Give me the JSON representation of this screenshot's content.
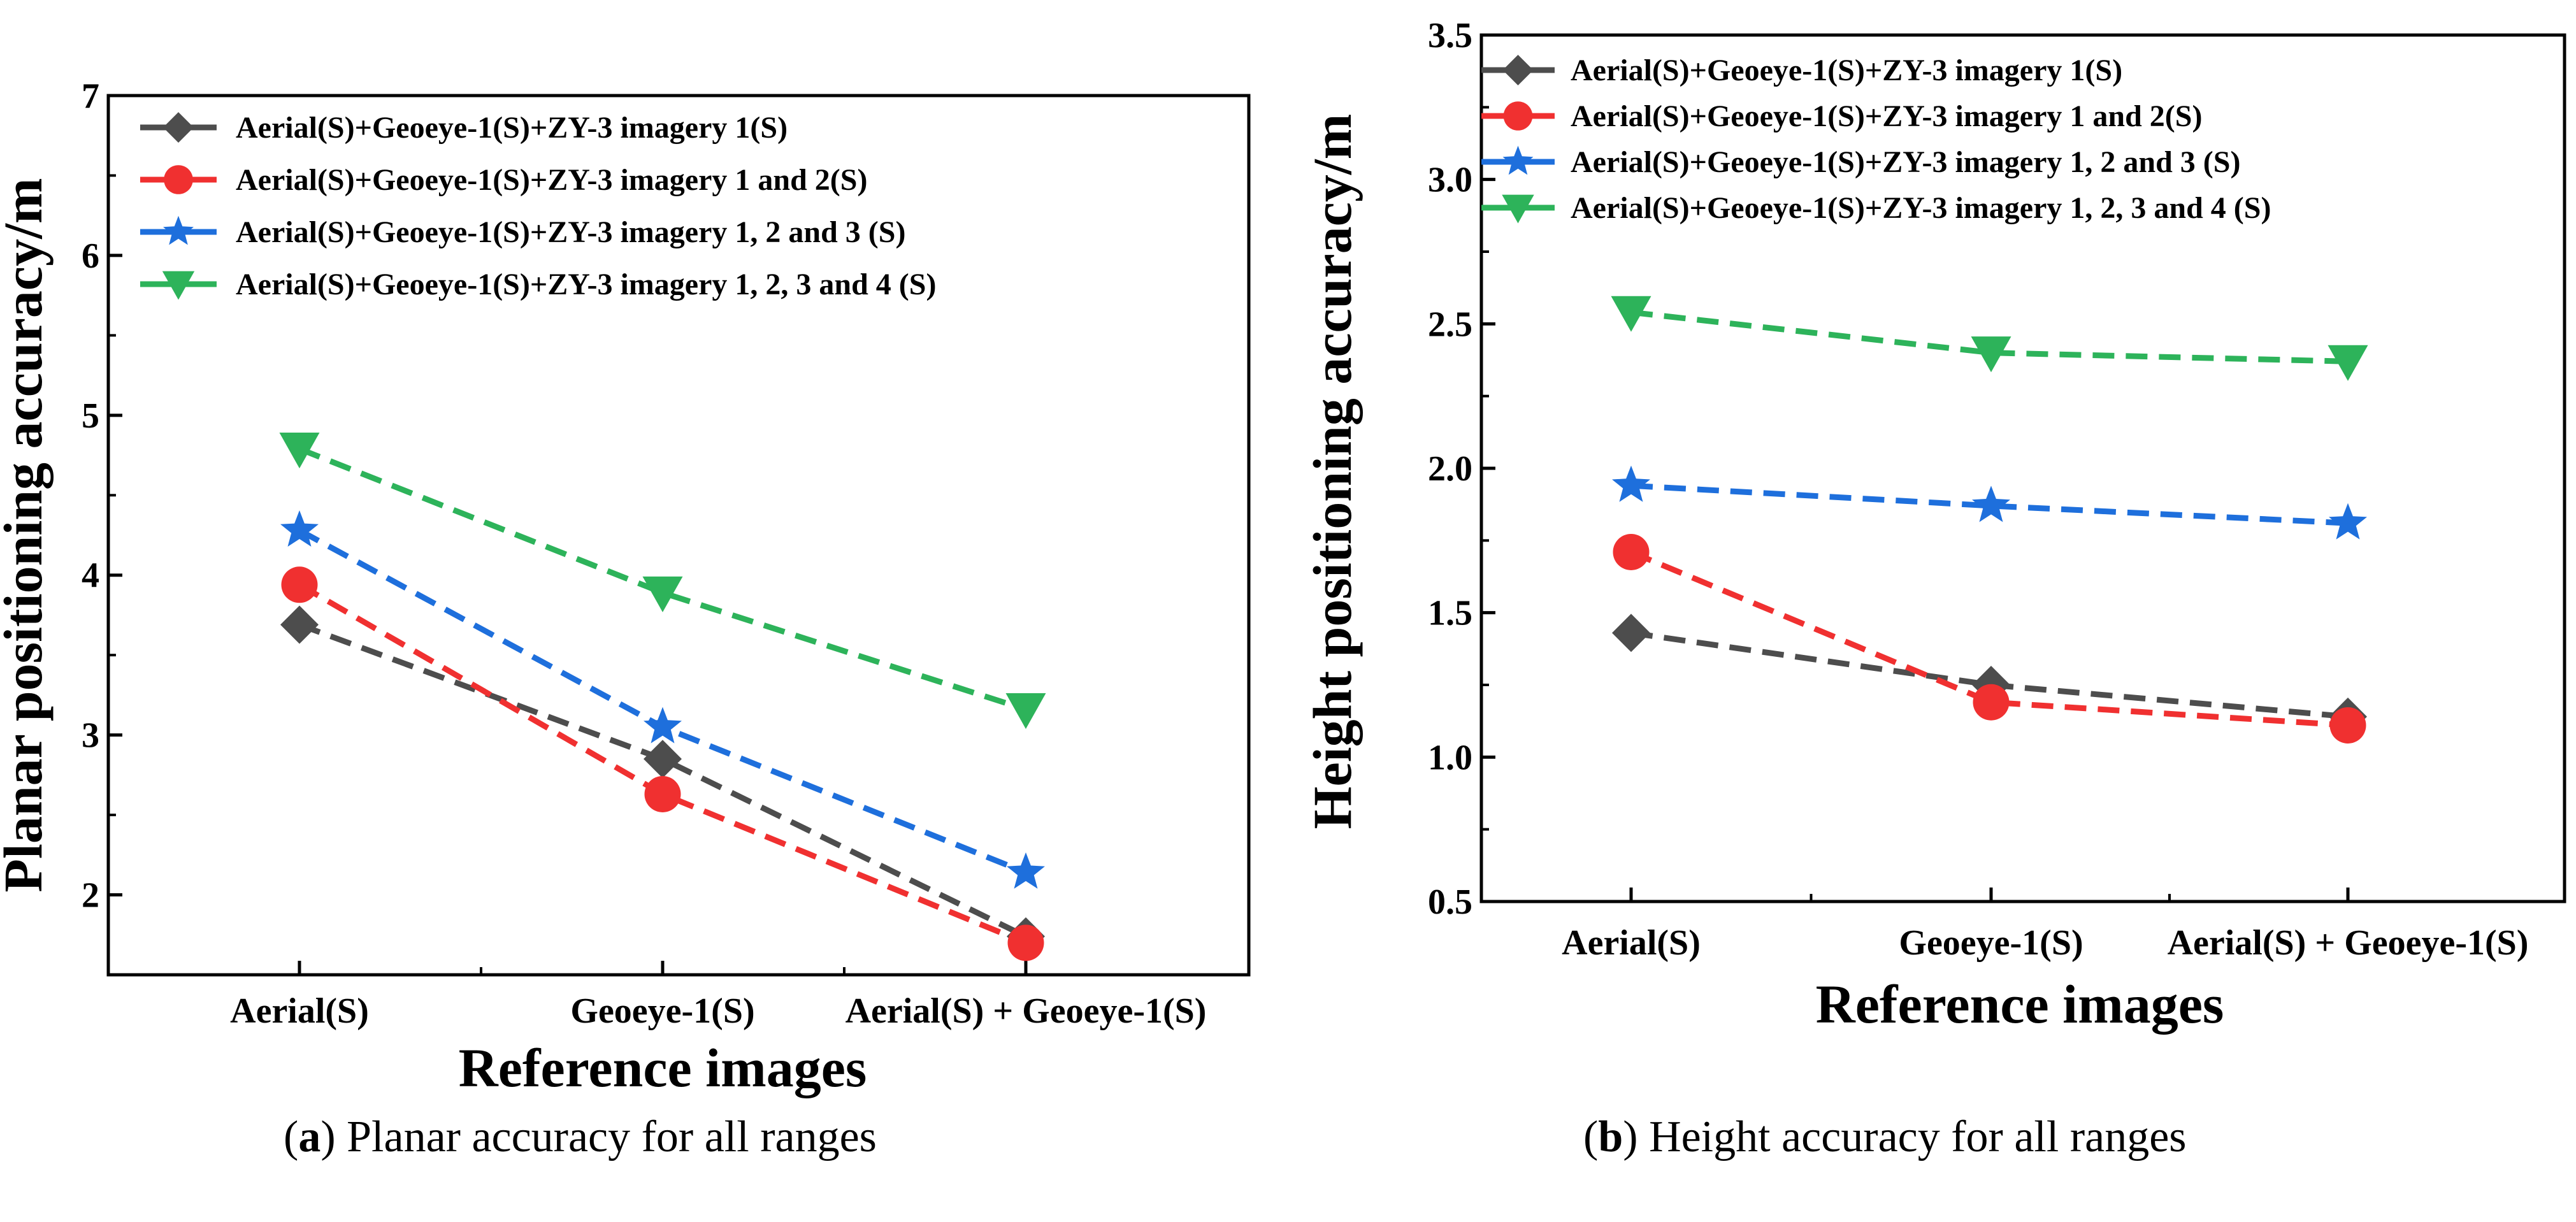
{
  "chart_data": [
    {
      "type": "line",
      "id": "a",
      "title": "",
      "xlabel": "Reference images",
      "ylabel": "Planar positioning accuracy/m",
      "categories": [
        "Aerial(S)",
        "Geoeye-1(S)",
        "Aerial(S) + Geoeye-1(S)"
      ],
      "ylim": [
        1.5,
        7
      ],
      "yticks": [
        "2",
        "3",
        "4",
        "5",
        "6",
        "7"
      ],
      "ytick_values": [
        2,
        3,
        4,
        5,
        6,
        7
      ],
      "legend_position": "top",
      "series": [
        {
          "name": "Aerial(S)+Geoeye-1(S)+ZY-3 imagery 1(S)",
          "color": "#4d4d4d",
          "marker": "diamond",
          "values": [
            3.69,
            2.85,
            1.74
          ]
        },
        {
          "name": "Aerial(S)+Geoeye-1(S)+ZY-3 imagery 1 and 2(S)",
          "color": "#f03030",
          "marker": "circle",
          "values": [
            3.94,
            2.63,
            1.7
          ]
        },
        {
          "name": "Aerial(S)+Geoeye-1(S)+ZY-3 imagery 1, 2 and 3 (S)",
          "color": "#1e6fdc",
          "marker": "star",
          "values": [
            4.28,
            3.05,
            2.14
          ]
        },
        {
          "name": "Aerial(S)+Geoeye-1(S)+ZY-3 imagery 1, 2, 3 and 4 (S)",
          "color": "#2db35a",
          "marker": "triangle-down",
          "values": [
            4.79,
            3.89,
            3.16
          ]
        }
      ]
    },
    {
      "type": "line",
      "id": "b",
      "title": "",
      "xlabel": "Reference images",
      "ylabel": "Height positioning accuracy/m",
      "categories": [
        "Aerial(S)",
        "Geoeye-1(S)",
        "Aerial(S) + Geoeye-1(S)"
      ],
      "ylim": [
        0.5,
        3.5
      ],
      "yticks": [
        "0.5",
        "1.0",
        "1.5",
        "2.0",
        "2.5",
        "3.0",
        "3.5"
      ],
      "ytick_values": [
        0.5,
        1.0,
        1.5,
        2.0,
        2.5,
        3.0,
        3.5
      ],
      "legend_position": "top",
      "series": [
        {
          "name": "Aerial(S)+Geoeye-1(S)+ZY-3 imagery 1(S)",
          "color": "#4d4d4d",
          "marker": "diamond",
          "values": [
            1.43,
            1.25,
            1.14
          ]
        },
        {
          "name": "Aerial(S)+Geoeye-1(S)+ZY-3 imagery 1 and 2(S)",
          "color": "#f03030",
          "marker": "circle",
          "values": [
            1.71,
            1.19,
            1.11
          ]
        },
        {
          "name": "Aerial(S)+Geoeye-1(S)+ZY-3 imagery 1, 2 and 3 (S)",
          "color": "#1e6fdc",
          "marker": "star",
          "values": [
            1.94,
            1.87,
            1.81
          ]
        },
        {
          "name": "Aerial(S)+Geoeye-1(S)+ZY-3 imagery 1, 2, 3 and 4 (S)",
          "color": "#2db35a",
          "marker": "triangle-down",
          "values": [
            2.54,
            2.4,
            2.37
          ]
        }
      ]
    }
  ],
  "captions": {
    "a_label": "a",
    "a_text": " Planar accuracy for all ranges",
    "b_label": "b",
    "b_text": " Height accuracy for all ranges"
  }
}
